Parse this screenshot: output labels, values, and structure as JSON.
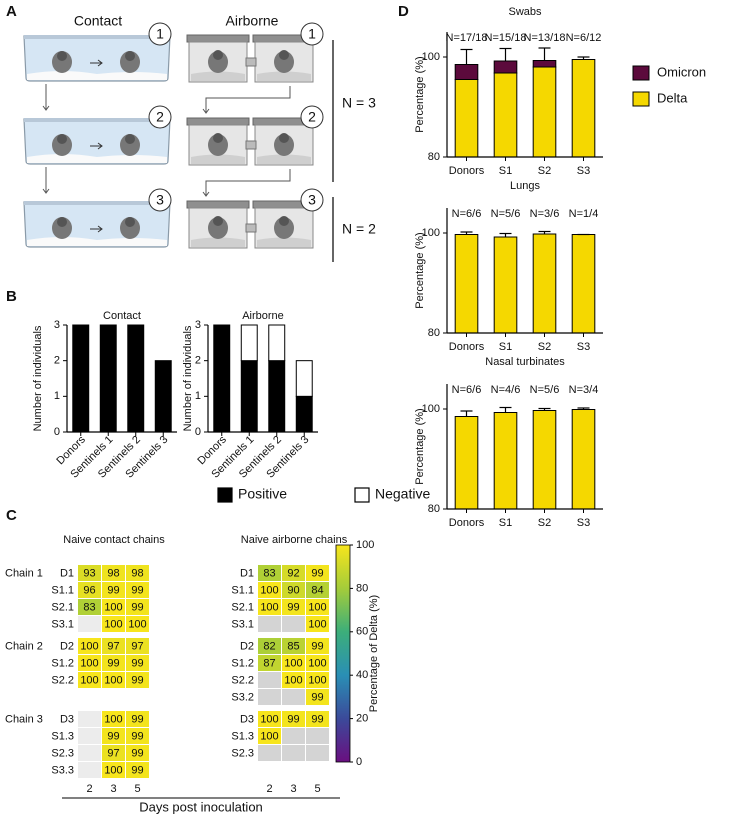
{
  "panel_labels": [
    "A",
    "B",
    "C",
    "D"
  ],
  "diagram": {
    "columns": [
      "Contact",
      "Airborne"
    ],
    "steps": [
      "1",
      "2",
      "3"
    ],
    "groups": [
      "N = 3",
      "N = 2"
    ]
  },
  "chart_data": [
    {
      "type": "bar",
      "title": "Contact",
      "categories": [
        "Donors",
        "Sentinels 1",
        "Sentinels 2",
        "Sentinels 3"
      ],
      "values": [
        3,
        3,
        3,
        2
      ],
      "color": "#000000",
      "y_label": "Number of individuals",
      "ylim": [
        0,
        3
      ],
      "yticks": [
        0,
        1,
        2,
        3
      ],
      "category_label_rotation": -45
    },
    {
      "type": "bar",
      "title": "Airborne",
      "categories": [
        "Donors",
        "Sentinels 1",
        "Sentinels 2",
        "Sentinels 3"
      ],
      "series": [
        {
          "name": "Positive",
          "color": "#000000",
          "values": [
            3,
            2,
            2,
            1
          ]
        },
        {
          "name": "Negative",
          "color": "#ffffff",
          "values": [
            0,
            1,
            1,
            1
          ]
        }
      ],
      "y_label": "Number of individuals",
      "ylim": [
        0,
        3
      ],
      "yticks": [
        0,
        1,
        2,
        3
      ],
      "category_label_rotation": -45,
      "legend_position": "bottom"
    },
    {
      "type": "heatmap",
      "title": "Naive contact chains",
      "x": [
        2,
        3,
        5
      ],
      "groups": [
        {
          "name": "Chain 1",
          "rows": [
            "D1",
            "S1.1",
            "S2.1",
            "S3.1"
          ],
          "values": [
            [
              93,
              98,
              98
            ],
            [
              96,
              99,
              99
            ],
            [
              83,
              100,
              99
            ],
            [
              null,
              100,
              100
            ]
          ]
        },
        {
          "name": "Chain 2",
          "rows": [
            "D2",
            "S1.2",
            "S2.2"
          ],
          "values": [
            [
              100,
              97,
              97
            ],
            [
              100,
              99,
              99
            ],
            [
              100,
              100,
              99
            ]
          ]
        },
        {
          "name": "Chain 3",
          "rows": [
            "D3",
            "S1.3",
            "S2.3",
            "S3.3"
          ],
          "values": [
            [
              null,
              100,
              99
            ],
            [
              null,
              99,
              99
            ],
            [
              null,
              97,
              99
            ],
            [
              null,
              100,
              99
            ]
          ]
        }
      ],
      "colorscale": [
        "#6a0f80",
        "#3b4a9a",
        "#2a8fb5",
        "#3cae7a",
        "#a4cc3a",
        "#f7e51c"
      ],
      "zlim": [
        0,
        100
      ],
      "missing_color": "#ececec",
      "x_label": "Days post inoculation"
    },
    {
      "type": "heatmap",
      "title": "Naive airborne chains",
      "x": [
        2,
        3,
        5
      ],
      "groups": [
        {
          "rows": [
            "D1",
            "S1.1",
            "S2.1",
            "S3.1"
          ],
          "values": [
            [
              83,
              92,
              99
            ],
            [
              100,
              90,
              84
            ],
            [
              100,
              99,
              100
            ],
            [
              null,
              null,
              100
            ]
          ]
        },
        {
          "rows": [
            "D2",
            "S1.2",
            "S2.2",
            "S3.2"
          ],
          "values": [
            [
              82,
              85,
              99
            ],
            [
              87,
              100,
              100
            ],
            [
              null,
              100,
              100
            ],
            [
              null,
              null,
              99
            ]
          ]
        },
        {
          "rows": [
            "D3",
            "S1.3",
            "S2.3"
          ],
          "values": [
            [
              100,
              99,
              99
            ],
            [
              100,
              null,
              null
            ],
            [
              null,
              null,
              null
            ]
          ]
        }
      ],
      "colorscale": [
        "#6a0f80",
        "#3b4a9a",
        "#2a8fb5",
        "#3cae7a",
        "#a4cc3a",
        "#f7e51c"
      ],
      "zlim": [
        0,
        100
      ],
      "missing_color": "#d4d4d4",
      "colorbar": {
        "label": "Percentage of Delta (%)",
        "ticks": [
          0,
          20,
          40,
          60,
          80,
          100
        ]
      }
    },
    {
      "type": "bar",
      "title": "Swabs",
      "categories": [
        "Donors",
        "S1",
        "S2",
        "S3"
      ],
      "series": [
        {
          "name": "Delta",
          "color": "#f5d800",
          "values": [
            95.5,
            96.8,
            98,
            99.5
          ]
        },
        {
          "name": "Omicron",
          "color": "#5c0a3c",
          "values": [
            3,
            2.4,
            1.3,
            0
          ]
        }
      ],
      "errors": [
        3,
        2.5,
        2.5,
        0.5
      ],
      "annotations": [
        "N=17/18",
        "N=15/18",
        "N=13/18",
        "N=6/12"
      ],
      "y_label": "Percentage (%)",
      "ylim": [
        80,
        105
      ],
      "yticks": [
        80,
        100
      ],
      "legend_position": "right"
    },
    {
      "type": "bar",
      "title": "Lungs",
      "categories": [
        "Donors",
        "S1",
        "S2",
        "S3"
      ],
      "values": [
        99.7,
        99.2,
        99.8,
        99.7
      ],
      "color": "#f5d800",
      "errors": [
        0.5,
        0.7,
        0.5,
        0
      ],
      "annotations": [
        "N=6/6",
        "N=5/6",
        "N=3/6",
        "N=1/4"
      ],
      "y_label": "Percentage (%)",
      "ylim": [
        80,
        105
      ],
      "yticks": [
        80,
        100
      ]
    },
    {
      "type": "bar",
      "title": "Nasal turbinates",
      "categories": [
        "Donors",
        "S1",
        "S2",
        "S3"
      ],
      "values": [
        98.5,
        99.3,
        99.7,
        99.9
      ],
      "color": "#f5d800",
      "errors": [
        1.1,
        1.0,
        0.4,
        0.3
      ],
      "annotations": [
        "N=6/6",
        "N=4/6",
        "N=5/6",
        "N=3/4"
      ],
      "y_label": "Percentage (%)",
      "ylim": [
        80,
        105
      ],
      "yticks": [
        80,
        100
      ]
    }
  ]
}
